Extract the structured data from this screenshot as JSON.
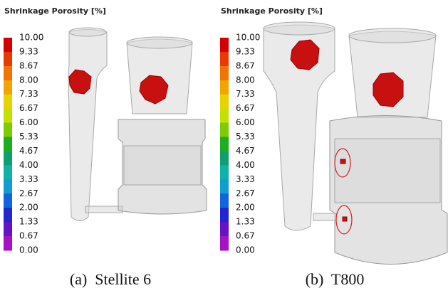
{
  "panels": [
    {
      "title": "Shrinkage Porosity [%]",
      "scale": [
        "10.00",
        "9.33",
        "8.67",
        "8.00",
        "7.33",
        "6.67",
        "6.00",
        "5.33",
        "4.67",
        "4.00",
        "3.33",
        "2.67",
        "2.00",
        "1.33",
        "0.67",
        "0.00"
      ],
      "caption": "(a)  Stellite 6"
    },
    {
      "title": "Shrinkage Porosity [%]",
      "scale": [
        "10.00",
        "9.33",
        "8.67",
        "8.00",
        "7.33",
        "6.67",
        "6.00",
        "5.33",
        "4.67",
        "4.00",
        "3.33",
        "2.67",
        "2.00",
        "1.33",
        "0.67",
        "0.00"
      ],
      "caption": "(b)  T800"
    }
  ]
}
